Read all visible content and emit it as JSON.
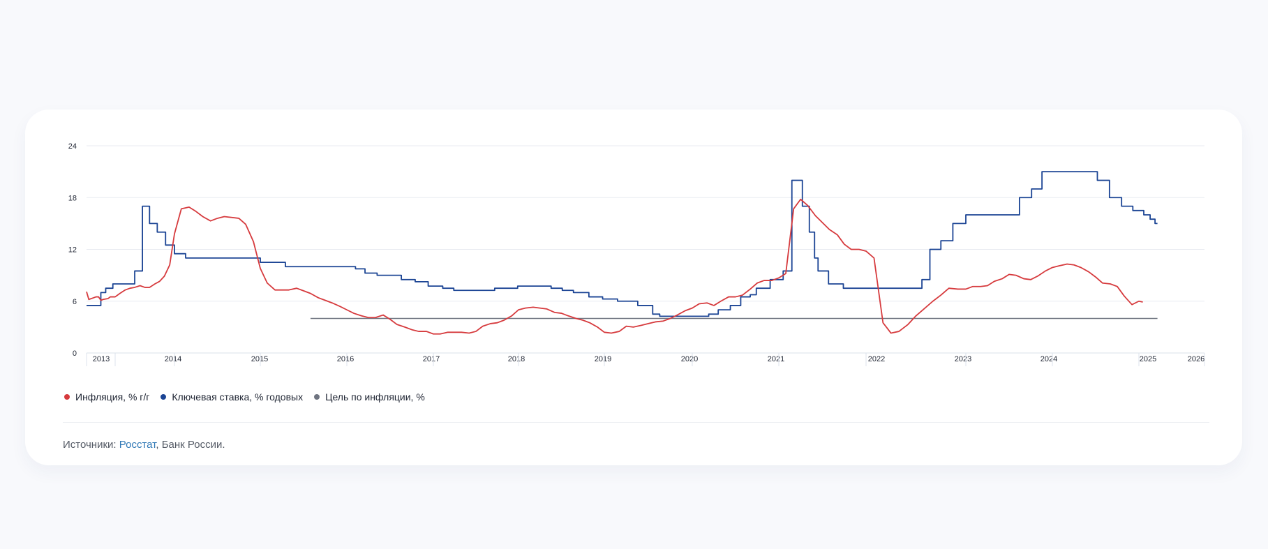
{
  "legend": {
    "inflation": "Инфляция, % г/г",
    "key_rate": "Ключевая ставка, % годовых",
    "target": "Цель по инфляции, %"
  },
  "source": {
    "prefix": "Источники: ",
    "link": "Росстат",
    "rest": ", Банк России."
  },
  "colors": {
    "inflation": "#d63a3d",
    "key_rate": "#1b4494",
    "target": "#6f7480"
  },
  "chart_data": {
    "type": "line",
    "yticks": [
      0,
      6,
      12,
      18,
      24
    ],
    "ylim": [
      0,
      24
    ],
    "xlim": [
      2013.0,
      2026.1
    ],
    "xticks": [
      "2013",
      "2014",
      "2015",
      "2016",
      "2017",
      "2018",
      "2019",
      "2020",
      "2021",
      "2022",
      "2023",
      "2024",
      "2025",
      "2026"
    ],
    "series": [
      {
        "name": "Инфляция, % г/г",
        "kind": "line",
        "points": [
          [
            2013.0,
            7.1
          ],
          [
            2013.08,
            6.2
          ],
          [
            2013.25,
            6.4
          ],
          [
            2013.33,
            6.5
          ],
          [
            2013.42,
            6.5
          ],
          [
            2013.5,
            6.1
          ],
          [
            2013.58,
            6.2
          ],
          [
            2013.75,
            6.3
          ],
          [
            2013.83,
            6.5
          ],
          [
            2013.92,
            6.5
          ],
          [
            2014.0,
            6.5
          ],
          [
            2014.08,
            6.9
          ],
          [
            2014.17,
            7.3
          ],
          [
            2014.25,
            7.5
          ],
          [
            2014.33,
            7.6
          ],
          [
            2014.42,
            7.8
          ],
          [
            2014.5,
            7.6
          ],
          [
            2014.58,
            7.6
          ],
          [
            2014.67,
            8.0
          ],
          [
            2014.75,
            8.3
          ],
          [
            2014.83,
            8.9
          ],
          [
            2014.92,
            10.2
          ],
          [
            2015.0,
            13.8
          ],
          [
            2015.08,
            16.7
          ],
          [
            2015.17,
            16.9
          ],
          [
            2015.25,
            16.4
          ],
          [
            2015.33,
            15.8
          ],
          [
            2015.42,
            15.3
          ],
          [
            2015.5,
            15.6
          ],
          [
            2015.58,
            15.8
          ],
          [
            2015.67,
            15.7
          ],
          [
            2015.75,
            15.6
          ],
          [
            2015.83,
            14.9
          ],
          [
            2015.92,
            12.9
          ],
          [
            2016.0,
            9.8
          ],
          [
            2016.08,
            8.1
          ],
          [
            2016.17,
            7.3
          ],
          [
            2016.25,
            7.3
          ],
          [
            2016.33,
            7.3
          ],
          [
            2016.42,
            7.5
          ],
          [
            2016.5,
            7.2
          ],
          [
            2016.58,
            6.9
          ],
          [
            2016.67,
            6.4
          ],
          [
            2016.75,
            6.1
          ],
          [
            2016.83,
            5.8
          ],
          [
            2016.92,
            5.4
          ],
          [
            2017.0,
            5.0
          ],
          [
            2017.08,
            4.6
          ],
          [
            2017.17,
            4.3
          ],
          [
            2017.25,
            4.1
          ],
          [
            2017.33,
            4.1
          ],
          [
            2017.42,
            4.4
          ],
          [
            2017.5,
            3.9
          ],
          [
            2017.58,
            3.3
          ],
          [
            2017.67,
            3.0
          ],
          [
            2017.75,
            2.7
          ],
          [
            2017.83,
            2.5
          ],
          [
            2017.92,
            2.5
          ],
          [
            2018.0,
            2.2
          ],
          [
            2018.08,
            2.2
          ],
          [
            2018.17,
            2.4
          ],
          [
            2018.25,
            2.4
          ],
          [
            2018.33,
            2.4
          ],
          [
            2018.42,
            2.3
          ],
          [
            2018.5,
            2.5
          ],
          [
            2018.58,
            3.1
          ],
          [
            2018.67,
            3.4
          ],
          [
            2018.75,
            3.5
          ],
          [
            2018.83,
            3.8
          ],
          [
            2018.92,
            4.3
          ],
          [
            2019.0,
            5.0
          ],
          [
            2019.08,
            5.2
          ],
          [
            2019.17,
            5.3
          ],
          [
            2019.25,
            5.2
          ],
          [
            2019.33,
            5.1
          ],
          [
            2019.42,
            4.7
          ],
          [
            2019.5,
            4.6
          ],
          [
            2019.58,
            4.3
          ],
          [
            2019.67,
            4.0
          ],
          [
            2019.75,
            3.8
          ],
          [
            2019.83,
            3.5
          ],
          [
            2019.92,
            3.0
          ],
          [
            2020.0,
            2.4
          ],
          [
            2020.08,
            2.3
          ],
          [
            2020.17,
            2.5
          ],
          [
            2020.25,
            3.1
          ],
          [
            2020.33,
            3.0
          ],
          [
            2020.42,
            3.2
          ],
          [
            2020.5,
            3.4
          ],
          [
            2020.58,
            3.6
          ],
          [
            2020.67,
            3.7
          ],
          [
            2020.75,
            4.0
          ],
          [
            2020.83,
            4.4
          ],
          [
            2020.92,
            4.9
          ],
          [
            2021.0,
            5.2
          ],
          [
            2021.08,
            5.7
          ],
          [
            2021.17,
            5.8
          ],
          [
            2021.25,
            5.5
          ],
          [
            2021.33,
            6.0
          ],
          [
            2021.42,
            6.5
          ],
          [
            2021.5,
            6.5
          ],
          [
            2021.58,
            6.7
          ],
          [
            2021.67,
            7.4
          ],
          [
            2021.75,
            8.1
          ],
          [
            2021.83,
            8.4
          ],
          [
            2021.92,
            8.4
          ],
          [
            2022.0,
            8.7
          ],
          [
            2022.08,
            9.2
          ],
          [
            2022.17,
            16.7
          ],
          [
            2022.25,
            17.8
          ],
          [
            2022.33,
            17.1
          ],
          [
            2022.42,
            15.9
          ],
          [
            2022.5,
            15.1
          ],
          [
            2022.58,
            14.3
          ],
          [
            2022.67,
            13.7
          ],
          [
            2022.75,
            12.6
          ],
          [
            2022.83,
            12.0
          ],
          [
            2022.92,
            12.0
          ],
          [
            2023.0,
            11.8
          ],
          [
            2023.08,
            11.0
          ],
          [
            2023.17,
            3.5
          ],
          [
            2023.25,
            2.3
          ],
          [
            2023.33,
            2.5
          ],
          [
            2023.42,
            3.3
          ],
          [
            2023.5,
            4.3
          ],
          [
            2023.58,
            5.1
          ],
          [
            2023.67,
            6.0
          ],
          [
            2023.75,
            6.7
          ],
          [
            2023.83,
            7.5
          ],
          [
            2023.92,
            7.4
          ],
          [
            2024.0,
            7.4
          ],
          [
            2024.08,
            7.7
          ],
          [
            2024.17,
            7.7
          ],
          [
            2024.25,
            7.8
          ],
          [
            2024.33,
            8.3
          ],
          [
            2024.42,
            8.6
          ],
          [
            2024.5,
            9.1
          ],
          [
            2024.58,
            9.0
          ],
          [
            2024.67,
            8.6
          ],
          [
            2024.75,
            8.5
          ],
          [
            2024.83,
            8.9
          ],
          [
            2024.92,
            9.5
          ],
          [
            2025.0,
            9.9
          ],
          [
            2025.08,
            10.1
          ],
          [
            2025.17,
            10.3
          ],
          [
            2025.25,
            10.2
          ],
          [
            2025.33,
            9.9
          ],
          [
            2025.42,
            9.4
          ],
          [
            2025.5,
            8.8
          ],
          [
            2025.58,
            8.1
          ],
          [
            2025.67,
            8.0
          ],
          [
            2025.75,
            7.7
          ],
          [
            2025.83,
            6.6
          ],
          [
            2025.92,
            5.6
          ],
          [
            2026.0,
            6.0
          ],
          [
            2026.08,
            5.9
          ]
        ]
      },
      {
        "name": "Ключевая ставка, % годовых",
        "kind": "step",
        "points": [
          [
            2013.0,
            5.5
          ],
          [
            2013.5,
            7.0
          ],
          [
            2013.67,
            7.5
          ],
          [
            2013.92,
            8.0
          ],
          [
            2014.33,
            9.5
          ],
          [
            2014.46,
            17.0
          ],
          [
            2014.58,
            15.0
          ],
          [
            2014.71,
            14.0
          ],
          [
            2014.85,
            12.5
          ],
          [
            2015.0,
            11.5
          ],
          [
            2015.13,
            11.0
          ],
          [
            2016.0,
            10.5
          ],
          [
            2016.29,
            10.0
          ],
          [
            2017.1,
            9.75
          ],
          [
            2017.21,
            9.25
          ],
          [
            2017.35,
            9.0
          ],
          [
            2017.63,
            8.5
          ],
          [
            2017.79,
            8.25
          ],
          [
            2017.94,
            7.75
          ],
          [
            2018.11,
            7.5
          ],
          [
            2018.24,
            7.25
          ],
          [
            2018.72,
            7.5
          ],
          [
            2018.99,
            7.75
          ],
          [
            2019.38,
            7.5
          ],
          [
            2019.51,
            7.25
          ],
          [
            2019.64,
            7.0
          ],
          [
            2019.82,
            6.5
          ],
          [
            2019.98,
            6.25
          ],
          [
            2020.15,
            6.0
          ],
          [
            2020.38,
            5.5
          ],
          [
            2020.55,
            4.5
          ],
          [
            2020.63,
            4.25
          ],
          [
            2021.19,
            4.5
          ],
          [
            2021.3,
            5.0
          ],
          [
            2021.44,
            5.5
          ],
          [
            2021.56,
            6.5
          ],
          [
            2021.67,
            6.75
          ],
          [
            2021.74,
            7.5
          ],
          [
            2021.9,
            8.5
          ],
          [
            2022.05,
            9.5
          ],
          [
            2022.15,
            20.0
          ],
          [
            2022.27,
            17.0
          ],
          [
            2022.35,
            14.0
          ],
          [
            2022.41,
            11.0
          ],
          [
            2022.45,
            9.5
          ],
          [
            2022.57,
            8.0
          ],
          [
            2022.74,
            7.5
          ],
          [
            2023.56,
            8.5
          ],
          [
            2023.64,
            12.0
          ],
          [
            2023.75,
            13.0
          ],
          [
            2023.87,
            15.0
          ],
          [
            2024.0,
            16.0
          ],
          [
            2024.62,
            18.0
          ],
          [
            2024.76,
            19.0
          ],
          [
            2024.88,
            21.0
          ],
          [
            2025.52,
            20.0
          ],
          [
            2025.66,
            18.0
          ],
          [
            2025.8,
            17.0
          ],
          [
            2025.93,
            16.5
          ],
          [
            2026.1,
            16.0
          ],
          [
            2026.23,
            15.5
          ],
          [
            2026.33,
            15.0
          ],
          [
            2026.38,
            15.0
          ]
        ]
      },
      {
        "name": "Цель по инфляции, %",
        "kind": "line",
        "points": [
          [
            2016.58,
            4.0
          ],
          [
            2026.38,
            4.0
          ]
        ]
      }
    ]
  }
}
